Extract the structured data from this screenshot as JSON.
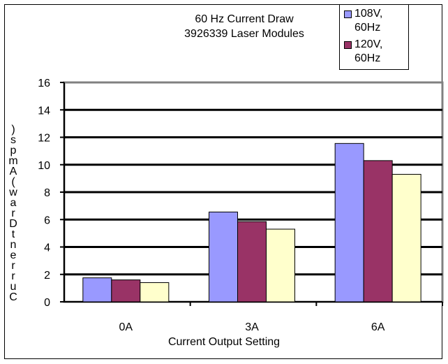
{
  "chart_data": {
    "type": "bar",
    "title": [
      "60 Hz Current Draw",
      "3926339 Laser Modules"
    ],
    "xlabel": "Current Output Setting",
    "ylabel_chars": [
      ")",
      "s",
      "p",
      "m",
      "A",
      "(",
      "w",
      "a",
      "r",
      "D",
      "t",
      "n",
      "e",
      "r",
      "r",
      "u",
      "C"
    ],
    "categories": [
      "0A",
      "3A",
      "6A"
    ],
    "ylim": [
      0,
      16
    ],
    "yticks": [
      0,
      2,
      4,
      6,
      8,
      10,
      12,
      14,
      16
    ],
    "grid": true,
    "legend_position": "top-right",
    "series": [
      {
        "name": "108V, 60Hz",
        "color": "#9999ff",
        "values": [
          1.75,
          6.55,
          11.55
        ]
      },
      {
        "name": "120V, 60Hz",
        "color": "#993366",
        "values": [
          1.6,
          5.85,
          10.3
        ]
      },
      {
        "name": "",
        "color": "#ffffcc",
        "values": [
          1.4,
          5.3,
          9.3
        ]
      }
    ]
  }
}
